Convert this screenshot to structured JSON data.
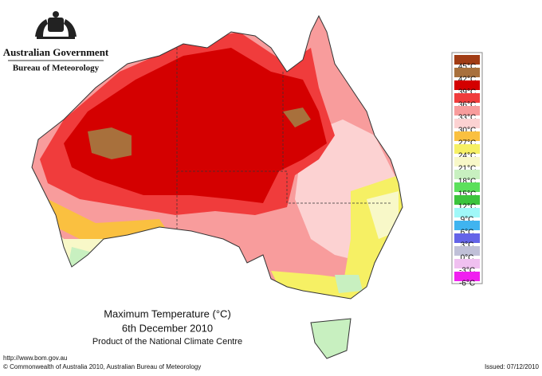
{
  "header": {
    "government": "Australian Government",
    "bureau": "Bureau of Meteorology"
  },
  "legend": {
    "items": [
      {
        "label": "45°C",
        "color": "#a13c14"
      },
      {
        "label": "42°C",
        "color": "#a8703c"
      },
      {
        "label": "39°C",
        "color": "#d40000"
      },
      {
        "label": "36°C",
        "color": "#f03c3c"
      },
      {
        "label": "33°C",
        "color": "#f89c9c"
      },
      {
        "label": "30°C",
        "color": "#fcd2d2"
      },
      {
        "label": "27°C",
        "color": "#fac040"
      },
      {
        "label": "24°C",
        "color": "#f6f064"
      },
      {
        "label": "21°C",
        "color": "#f8f8c8"
      },
      {
        "label": "18°C",
        "color": "#c8f0c0"
      },
      {
        "label": "15°C",
        "color": "#5ce05c"
      },
      {
        "label": "12°C",
        "color": "#3cc43c"
      },
      {
        "label": "9°C",
        "color": "#a0f8f8"
      },
      {
        "label": "6°C",
        "color": "#40b4f0"
      },
      {
        "label": "3°C",
        "color": "#6464e8"
      },
      {
        "label": "0°C",
        "color": "#c0c0d8"
      },
      {
        "label": "-3°C",
        "color": "#f0c0f0"
      },
      {
        "label": "-6°C",
        "color": "#f020f0"
      }
    ]
  },
  "caption": {
    "title": "Maximum Temperature (°C)",
    "date": "6th December 2010",
    "product": "Product of the National Climate Centre"
  },
  "footer": {
    "url": "http://www.bom.gov.au",
    "copyright": "© Commonwealth of Australia 2010, Australian Bureau of Meteorology",
    "issued": "Issued: 07/12/2010"
  }
}
